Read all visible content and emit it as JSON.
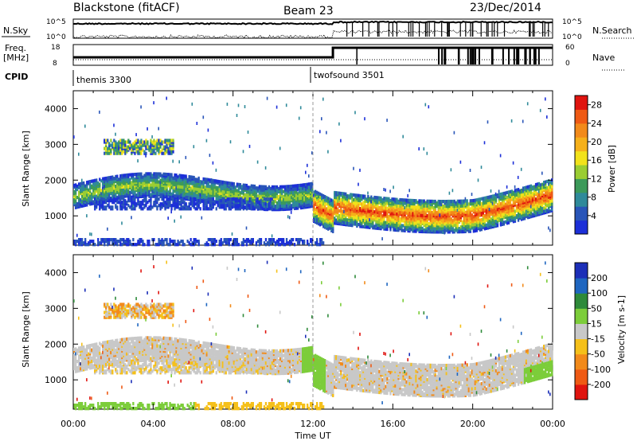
{
  "header": {
    "radar": "Blackstone (fitACF)",
    "beam": "Beam 23",
    "date": "23/Dec/2014"
  },
  "top_panels": {
    "nsky_label": "N.Sky",
    "nsky_ticks": [
      "10^5",
      "10^0"
    ],
    "nsearch_label": "N.Search",
    "nsearch_ticks": [
      "10^5",
      "10^0"
    ],
    "freq_label": "Freq.",
    "freq_unit": "[MHz]",
    "freq_ticks": [
      "18",
      "8"
    ],
    "nave_label": "Nave",
    "nave_ticks": [
      "60",
      "0"
    ],
    "cpid_label": "CPID",
    "cpid_segments": [
      {
        "name": "themis 3300",
        "start_h": 0,
        "end_h": 12.0
      },
      {
        "name": "twofsound 3501",
        "start_h": 12.0,
        "end_h": 24.0
      }
    ]
  },
  "chart_data": [
    {
      "type": "heatmap",
      "name": "power",
      "xlabel": "Time UT",
      "ylabel": "Slant Range [km]",
      "xlim": [
        0,
        24
      ],
      "ylim": [
        180,
        4500
      ],
      "x_ticks": [
        "00:00",
        "04:00",
        "08:00",
        "12:00",
        "16:00",
        "20:00",
        "00:00"
      ],
      "y_ticks": [
        1000,
        2000,
        3000,
        4000
      ],
      "colorbar": {
        "label": "Power [dB]",
        "ticks": [
          4,
          8,
          12,
          16,
          20,
          24,
          28
        ],
        "range": [
          0,
          30
        ],
        "colors": [
          "#1c2fd8",
          "#2955b8",
          "#2f8a9a",
          "#3c9a5a",
          "#9acd32",
          "#f2e21a",
          "#f5b01a",
          "#f28a1a",
          "#ef5a14",
          "#e0140f"
        ]
      },
      "features": [
        {
          "label": "main scatter band",
          "t_start": 0,
          "t_end": 24,
          "range_km": [
            1000,
            2200
          ]
        },
        {
          "label": "upper scatter patch",
          "t_start": 1.5,
          "t_end": 5,
          "range_km": [
            2700,
            3200
          ]
        },
        {
          "label": "near-range ground band",
          "t_start": 0,
          "t_end": 12.5,
          "range_km": [
            180,
            400
          ]
        }
      ]
    },
    {
      "type": "heatmap",
      "name": "velocity",
      "xlabel": "Time UT",
      "ylabel": "Slant Range [km]",
      "xlim": [
        0,
        24
      ],
      "ylim": [
        180,
        4500
      ],
      "x_ticks": [
        "00:00",
        "04:00",
        "08:00",
        "12:00",
        "16:00",
        "20:00",
        "00:00"
      ],
      "y_ticks": [
        1000,
        2000,
        3000,
        4000
      ],
      "colorbar": {
        "label": "Velocity [m s-1]",
        "tick_labels": [
          "200",
          "100",
          "50",
          "15",
          "-15",
          "-50",
          "-100",
          "-200"
        ],
        "colors": [
          "#1c2fb8",
          "#1f66c0",
          "#2e8a3a",
          "#7ccd3a",
          "#c8c8c8",
          "#f5c01a",
          "#f28a1a",
          "#ef5a14",
          "#e0140f"
        ]
      }
    }
  ]
}
